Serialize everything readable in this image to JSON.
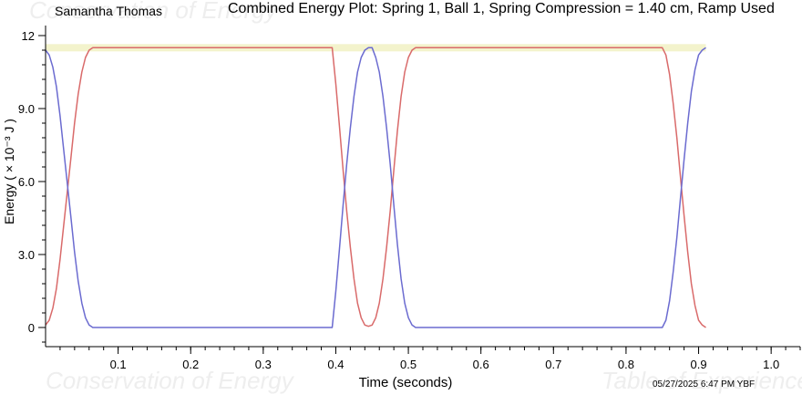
{
  "watermarks": {
    "top_left": "Conservation of Energy",
    "bottom_left": "Conservation of Energy",
    "bottom_right": "Table of Experience"
  },
  "header": {
    "user_name": "Samantha Thomas"
  },
  "footer": {
    "timestamp": "05/27/2025  6:47 PM  YBF"
  },
  "colors": {
    "kinetic_line": "#d96a6a",
    "potential_line": "#6b6bd0",
    "total_band": "#f3f3cc",
    "axis": "#000000"
  },
  "chart_data": {
    "type": "line",
    "title": "Combined Energy Plot: Spring 1, Ball 1, Spring Compression = 1.40 cm, Ramp Used",
    "xlabel": "Time (seconds)",
    "ylabel": "Energy ( × 10⁻³ J )",
    "xlim": [
      0,
      1.04
    ],
    "ylim": [
      -0.8,
      12.5
    ],
    "x_ticks": [
      0.1,
      0.2,
      0.3,
      0.4,
      0.5,
      0.6,
      0.7,
      0.8,
      0.9,
      1.0
    ],
    "x_tick_labels": [
      "0.1",
      "0.2",
      "0.3",
      "0.4",
      "0.5",
      "0.6",
      "0.7",
      "0.8",
      "0.9",
      "1.0"
    ],
    "y_ticks": [
      0,
      3,
      6,
      9,
      12
    ],
    "y_tick_labels": [
      "0",
      "3.0",
      "6.0",
      "9.0",
      "12"
    ],
    "grid": false,
    "band": {
      "x_range": [
        0,
        0.91
      ],
      "y_range": [
        11.35,
        11.65
      ]
    },
    "series": [
      {
        "color_key": "kinetic_line",
        "x": [
          0.0,
          0.005,
          0.01,
          0.015,
          0.02,
          0.025,
          0.03,
          0.035,
          0.04,
          0.045,
          0.05,
          0.055,
          0.06,
          0.065,
          0.07,
          0.1,
          0.2,
          0.3,
          0.395,
          0.4,
          0.405,
          0.41,
          0.415,
          0.42,
          0.425,
          0.43,
          0.435,
          0.44,
          0.445,
          0.45,
          0.455,
          0.46,
          0.465,
          0.47,
          0.475,
          0.48,
          0.485,
          0.49,
          0.495,
          0.5,
          0.505,
          0.51,
          0.515,
          0.52,
          0.6,
          0.7,
          0.8,
          0.85,
          0.855,
          0.86,
          0.865,
          0.87,
          0.875,
          0.88,
          0.885,
          0.89,
          0.895,
          0.9,
          0.905,
          0.91
        ],
        "y": [
          0.1,
          0.3,
          0.8,
          1.6,
          2.8,
          4.2,
          5.6,
          7.0,
          8.4,
          9.6,
          10.5,
          11.1,
          11.4,
          11.5,
          11.5,
          11.5,
          11.5,
          11.5,
          11.5,
          10.0,
          8.3,
          6.5,
          4.8,
          3.3,
          2.0,
          1.0,
          0.4,
          0.1,
          0.05,
          0.1,
          0.4,
          1.0,
          2.0,
          3.3,
          4.8,
          6.5,
          8.1,
          9.5,
          10.5,
          11.1,
          11.4,
          11.5,
          11.5,
          11.5,
          11.5,
          11.5,
          11.5,
          11.5,
          11.2,
          10.4,
          9.2,
          7.8,
          6.2,
          4.6,
          3.1,
          1.8,
          0.9,
          0.3,
          0.1,
          0.0
        ]
      },
      {
        "color_key": "potential_line",
        "x": [
          0.0,
          0.005,
          0.01,
          0.015,
          0.02,
          0.025,
          0.03,
          0.035,
          0.04,
          0.045,
          0.05,
          0.055,
          0.06,
          0.065,
          0.07,
          0.1,
          0.2,
          0.3,
          0.395,
          0.4,
          0.405,
          0.41,
          0.415,
          0.42,
          0.425,
          0.43,
          0.435,
          0.44,
          0.445,
          0.45,
          0.455,
          0.46,
          0.465,
          0.47,
          0.475,
          0.48,
          0.485,
          0.49,
          0.495,
          0.5,
          0.505,
          0.51,
          0.515,
          0.52,
          0.6,
          0.7,
          0.8,
          0.85,
          0.855,
          0.86,
          0.865,
          0.87,
          0.875,
          0.88,
          0.885,
          0.89,
          0.895,
          0.9,
          0.905,
          0.91
        ],
        "y": [
          11.4,
          11.2,
          10.7,
          9.9,
          8.7,
          7.3,
          5.9,
          4.5,
          3.1,
          1.9,
          1.0,
          0.4,
          0.1,
          0.0,
          0.0,
          0.0,
          0.0,
          0.0,
          0.0,
          1.5,
          3.2,
          5.0,
          6.7,
          8.2,
          9.5,
          10.5,
          11.1,
          11.4,
          11.5,
          11.5,
          11.1,
          10.5,
          9.5,
          8.2,
          6.7,
          5.0,
          3.4,
          2.0,
          1.0,
          0.4,
          0.1,
          0.0,
          0.0,
          0.0,
          0.0,
          0.0,
          0.0,
          0.0,
          0.3,
          1.1,
          2.3,
          3.7,
          5.3,
          6.9,
          8.4,
          9.7,
          10.6,
          11.2,
          11.4,
          11.5
        ]
      }
    ]
  }
}
